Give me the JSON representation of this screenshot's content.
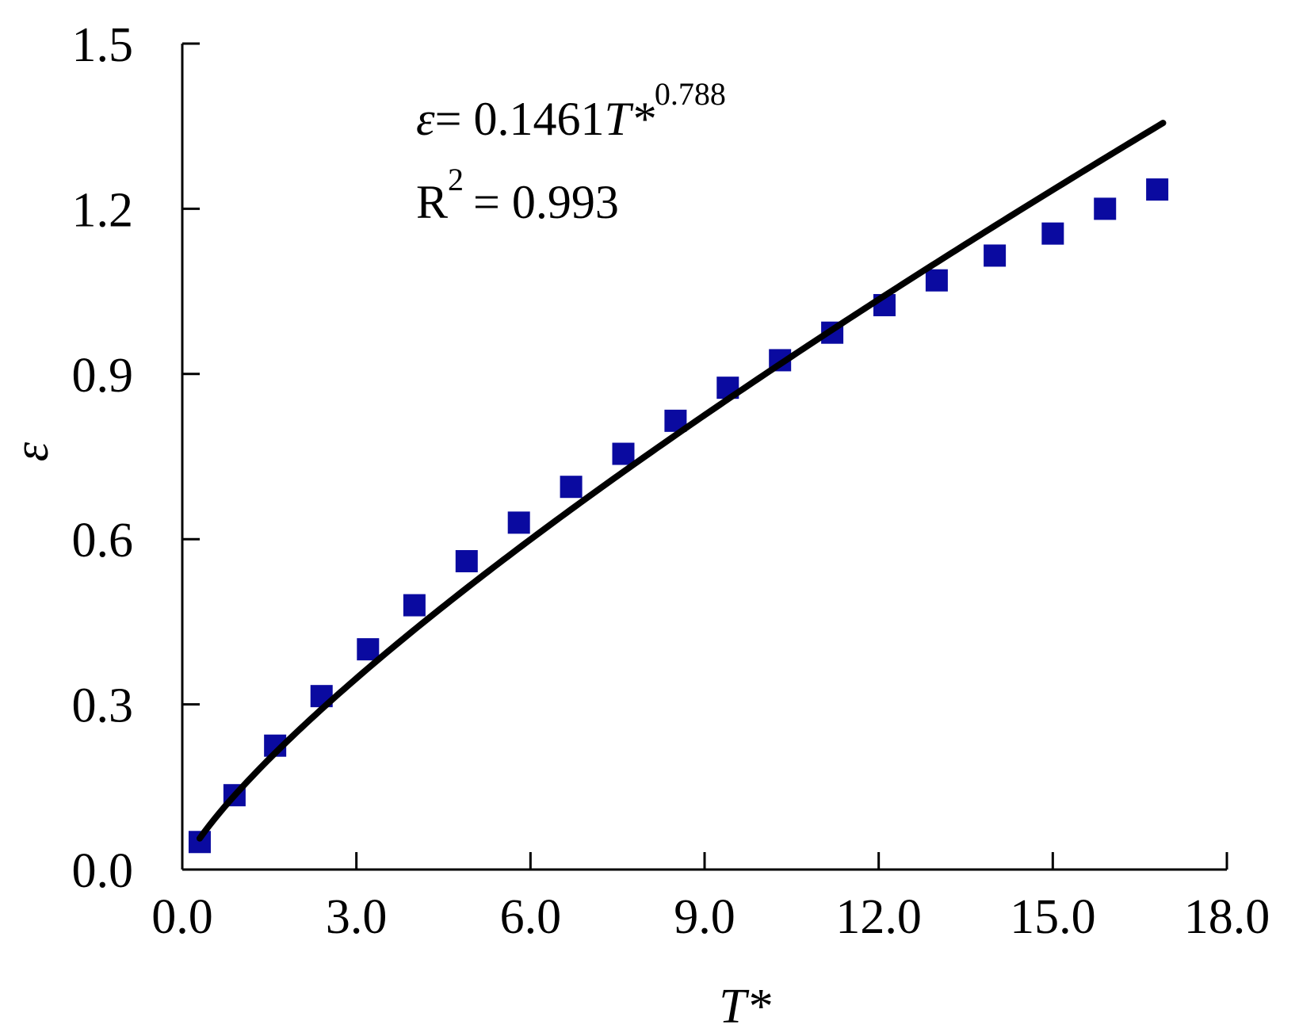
{
  "chart_data": {
    "type": "scatter",
    "xlabel": "T*",
    "ylabel": "ε",
    "xlim": [
      0,
      18
    ],
    "ylim": [
      0,
      1.5
    ],
    "x_ticks": [
      "0.0",
      "3.0",
      "6.0",
      "9.0",
      "12.0",
      "15.0",
      "18.0"
    ],
    "y_ticks": [
      "0.0",
      "0.3",
      "0.6",
      "0.9",
      "1.2",
      "1.5"
    ],
    "x_tick_values": [
      0,
      3,
      6,
      9,
      12,
      15,
      18
    ],
    "y_tick_values": [
      0,
      0.3,
      0.6,
      0.9,
      1.2,
      1.5
    ],
    "grid": false,
    "series": [
      {
        "x": [
          0.3,
          0.9,
          1.6,
          2.4,
          3.2,
          4.0,
          4.9,
          5.8,
          6.7,
          7.6,
          8.5,
          9.4,
          10.3,
          11.2,
          12.1,
          13.0,
          14.0,
          15.0,
          15.9,
          16.8
        ],
        "y": [
          0.05,
          0.135,
          0.225,
          0.315,
          0.4,
          0.48,
          0.56,
          0.63,
          0.695,
          0.755,
          0.815,
          0.875,
          0.925,
          0.975,
          1.025,
          1.07,
          1.115,
          1.155,
          1.2,
          1.235
        ],
        "color": "#0a0aa0",
        "marker": "square"
      }
    ],
    "fit": {
      "coefficient": 0.1461,
      "exponent": 0.788,
      "x_range": [
        0.3,
        16.9
      ],
      "color": "#000000"
    },
    "annotations": {
      "equation_lhs": "ε",
      "equation_mid": "= 0.1461",
      "equation_var": "T*",
      "equation_exp": "0.788",
      "r2_base": "R",
      "r2_sup": "2",
      "r2_value": "= 0.993"
    }
  }
}
